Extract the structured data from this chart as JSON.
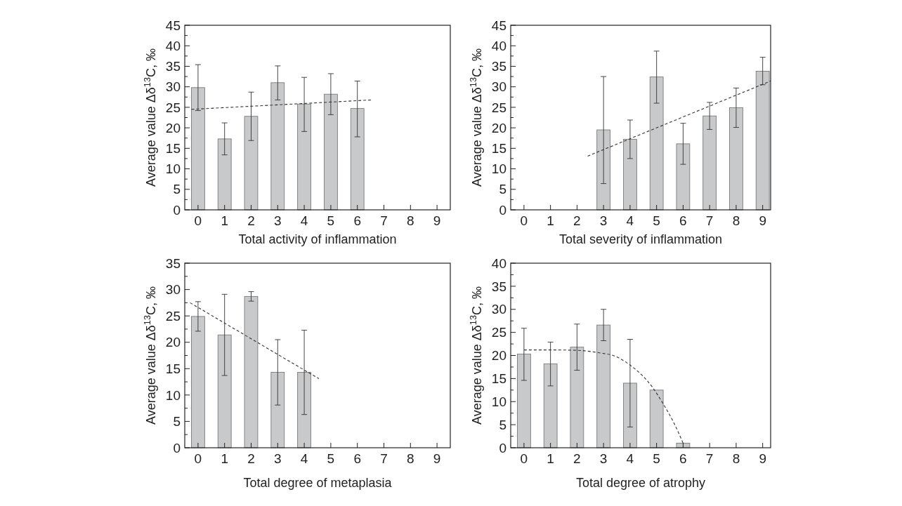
{
  "chart_data": [
    {
      "type": "bar",
      "xlabel": "Total activity of inflammation",
      "ylabel": "Average value Δδ$^{13}$C, ‰",
      "xlim": [
        -0.5,
        9.5
      ],
      "xticks": [
        0,
        1,
        2,
        3,
        4,
        5,
        6,
        7,
        8,
        9
      ],
      "ylim": [
        0,
        45
      ],
      "yticks": [
        0,
        {
          "value": 2.5,
          "label": null
        },
        5,
        {
          "value": 7.5,
          "label": null
        },
        10,
        {
          "value": 12.5,
          "label": null
        },
        15,
        {
          "value": 17.5,
          "label": null
        },
        20,
        {
          "value": 22.5,
          "label": null
        },
        25,
        {
          "value": 27.5,
          "label": null
        },
        30,
        {
          "value": 32.5,
          "label": null
        },
        35,
        {
          "value": 37.5,
          "label": null
        },
        40,
        {
          "value": 42.5,
          "label": null
        },
        45
      ],
      "series": [
        {
          "color": "#c8c9cb",
          "x": [
            0,
            1,
            2,
            3,
            4,
            5,
            6
          ],
          "values": [
            29.8,
            17.3,
            22.8,
            31.0,
            25.8,
            28.2,
            24.7
          ],
          "errors": [
            [
              24.2,
              35.4
            ],
            [
              13.4,
              21.2
            ],
            [
              16.9,
              28.7
            ],
            [
              26.8,
              35.1
            ],
            [
              19.1,
              32.3
            ],
            [
              23.2,
              33.2
            ],
            [
              17.8,
              31.4
            ]
          ]
        },
        {
          "type": "line",
          "color": "#333333",
          "line_style": "dashed",
          "x": [
            -0.25,
            6.55
          ],
          "values": [
            24.5,
            26.8
          ]
        }
      ]
    },
    {
      "type": "bar",
      "xlabel": "Total severity of inflammation",
      "ylabel": "Average value Δδ$^{13}$C, ‰",
      "xlim": [
        -0.5,
        9.3
      ],
      "xticks": [
        0,
        1,
        2,
        3,
        4,
        5,
        6,
        7,
        8,
        9
      ],
      "ylim": [
        0,
        45
      ],
      "yticks": [
        0,
        {
          "value": 2.5,
          "label": null
        },
        5,
        {
          "value": 7.5,
          "label": null
        },
        10,
        {
          "value": 12.5,
          "label": null
        },
        15,
        {
          "value": 17.5,
          "label": null
        },
        20,
        {
          "value": 22.5,
          "label": null
        },
        25,
        {
          "value": 27.5,
          "label": null
        },
        30,
        {
          "value": 32.5,
          "label": null
        },
        35,
        {
          "value": 37.5,
          "label": null
        },
        40,
        {
          "value": 42.5,
          "label": null
        },
        45
      ],
      "series": [
        {
          "color": "#c8c9cb",
          "x": [
            3,
            4,
            5,
            6,
            7,
            8,
            9
          ],
          "values": [
            19.5,
            17.2,
            32.4,
            16.1,
            22.9,
            24.9,
            33.8
          ],
          "errors": [
            [
              6.4,
              32.5
            ],
            [
              12.5,
              21.9
            ],
            [
              26.0,
              38.7
            ],
            [
              11.1,
              21.1
            ],
            [
              19.6,
              26.2
            ],
            [
              20.1,
              29.7
            ],
            [
              30.5,
              37.2
            ]
          ]
        },
        {
          "type": "line",
          "color": "#333333",
          "line_style": "dashed",
          "x": [
            2.4,
            9.3
          ],
          "values": [
            13.1,
            31.4
          ]
        }
      ]
    },
    {
      "type": "bar",
      "xlabel": "Total degree of metaplasia",
      "ylabel": "Average value Δδ$^{13}$C, ‰",
      "xlim": [
        -0.5,
        9.5
      ],
      "xticks": [
        0,
        1,
        2,
        3,
        4,
        5,
        6,
        7,
        8,
        9
      ],
      "ylim": [
        0,
        35
      ],
      "yticks": [
        0,
        {
          "value": 2.5,
          "label": null
        },
        5,
        {
          "value": 7.5,
          "label": null
        },
        10,
        {
          "value": 12.5,
          "label": null
        },
        15,
        {
          "value": 17.5,
          "label": null
        },
        20,
        {
          "value": 22.5,
          "label": null
        },
        25,
        {
          "value": 27.5,
          "label": null
        },
        30,
        {
          "value": 32.5,
          "label": null
        },
        35
      ],
      "series": [
        {
          "color": "#c8c9cb",
          "x": [
            0,
            1,
            2,
            3,
            4
          ],
          "values": [
            24.9,
            21.4,
            28.7,
            14.3,
            14.3
          ],
          "errors": [
            [
              22.1,
              27.7
            ],
            [
              13.7,
              29.1
            ],
            [
              27.8,
              29.6
            ],
            [
              8.1,
              20.5
            ],
            [
              6.3,
              22.3
            ]
          ]
        },
        {
          "type": "line",
          "color": "#333333",
          "line_style": "dashed",
          "x": [
            -0.3,
            4.55
          ],
          "values": [
            27.5,
            13.1
          ]
        }
      ]
    },
    {
      "type": "bar",
      "xlabel": "Total degree of atrophy",
      "ylabel": "Average value Δδ$^{13}$C, ‰",
      "xlim": [
        -0.5,
        9.3
      ],
      "xticks": [
        0,
        1,
        2,
        3,
        4,
        5,
        6,
        7,
        8,
        9
      ],
      "ylim": [
        0,
        40
      ],
      "yticks": [
        0,
        {
          "value": 2.5,
          "label": null
        },
        5,
        {
          "value": 7.5,
          "label": null
        },
        10,
        {
          "value": 12.5,
          "label": null
        },
        15,
        {
          "value": 17.5,
          "label": null
        },
        20,
        {
          "value": 22.5,
          "label": null
        },
        25,
        {
          "value": 27.5,
          "label": null
        },
        30,
        {
          "value": 32.5,
          "label": null
        },
        35,
        {
          "value": 37.5,
          "label": null
        },
        40
      ],
      "series": [
        {
          "color": "#c8c9cb",
          "x": [
            0,
            1,
            2,
            3,
            4,
            5,
            6
          ],
          "values": [
            20.3,
            18.2,
            21.8,
            26.6,
            14.0,
            12.5,
            1.0
          ],
          "errors": [
            [
              14.6,
              25.9
            ],
            [
              13.4,
              22.9
            ],
            [
              16.8,
              26.8
            ],
            [
              23.2,
              30.0
            ],
            [
              4.5,
              23.5
            ],
            null,
            null
          ]
        },
        {
          "type": "line",
          "color": "#333333",
          "line_style": "dashed",
          "x": [
            0,
            1,
            2.04,
            2.92,
            3.36,
            3.98,
            4.87,
            5.24,
            5.66,
            6.0
          ],
          "values": [
            21.2,
            21.2,
            21.1,
            20.5,
            20.0,
            18.0,
            12.9,
            9.6,
            5.3,
            1.0
          ]
        }
      ]
    }
  ]
}
